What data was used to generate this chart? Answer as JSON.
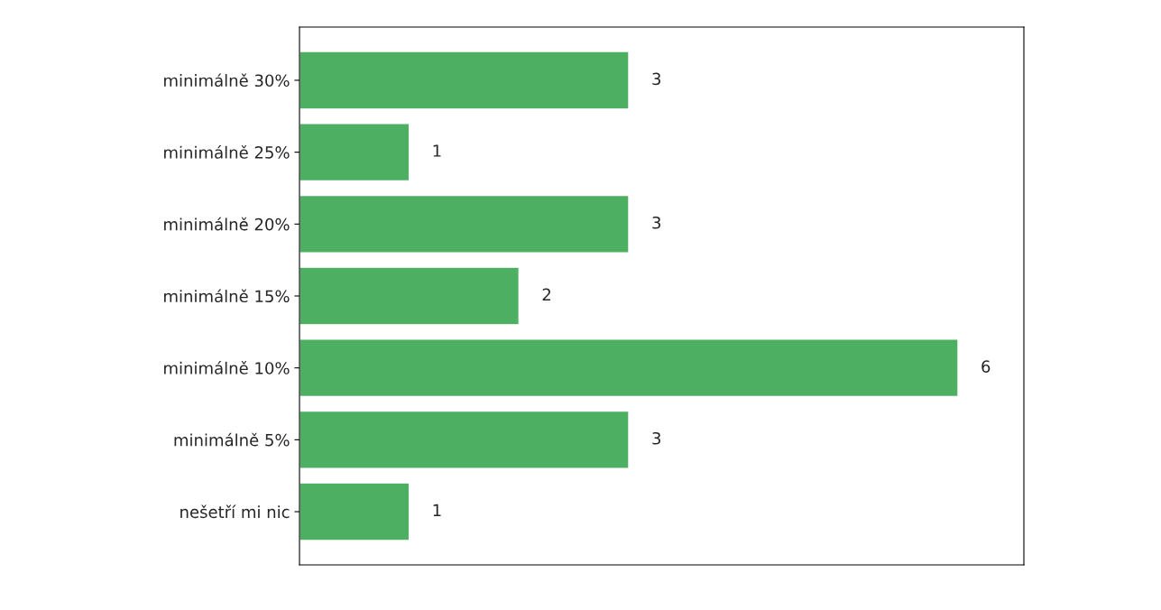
{
  "chart_data": {
    "type": "bar",
    "orientation": "horizontal",
    "categories": [
      "minimálně 30%",
      "minimálně 25%",
      "minimálně 20%",
      "minimálně 15%",
      "minimálně 10%",
      "minimálně 5%",
      "nešetří mi nic"
    ],
    "values": [
      3,
      1,
      3,
      2,
      6,
      3,
      1
    ],
    "color": "#4caf62",
    "xlim": [
      0,
      6.6
    ],
    "tick_labels": "y",
    "data_labels": true,
    "grid": false,
    "legend": false
  }
}
